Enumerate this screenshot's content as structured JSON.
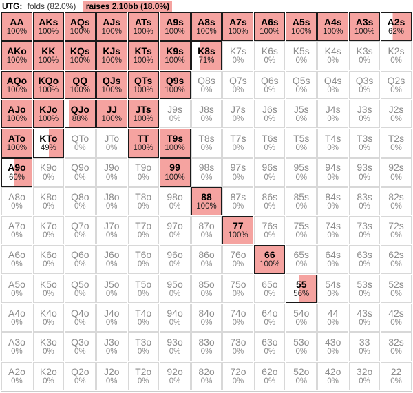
{
  "header": {
    "position": "UTG:",
    "fold_label": "folds (82.0%)",
    "raise_label": "raises 2.10bb (18.0%)"
  },
  "colors": {
    "raise_fill": "#F5A3A0",
    "active_border": "#1a1a1a",
    "inactive_border": "#d8d8d8",
    "inactive_text": "#8d8d8d"
  },
  "grid": {
    "rows": [
      [
        {
          "hand": "AA",
          "pct": 100
        },
        {
          "hand": "AKs",
          "pct": 100
        },
        {
          "hand": "AQs",
          "pct": 100
        },
        {
          "hand": "AJs",
          "pct": 100
        },
        {
          "hand": "ATs",
          "pct": 100
        },
        {
          "hand": "A9s",
          "pct": 100
        },
        {
          "hand": "A8s",
          "pct": 100
        },
        {
          "hand": "A7s",
          "pct": 100
        },
        {
          "hand": "A6s",
          "pct": 100
        },
        {
          "hand": "A5s",
          "pct": 100
        },
        {
          "hand": "A4s",
          "pct": 100
        },
        {
          "hand": "A3s",
          "pct": 100
        },
        {
          "hand": "A2s",
          "pct": 62
        }
      ],
      [
        {
          "hand": "AKo",
          "pct": 100
        },
        {
          "hand": "KK",
          "pct": 100
        },
        {
          "hand": "KQs",
          "pct": 100
        },
        {
          "hand": "KJs",
          "pct": 100
        },
        {
          "hand": "KTs",
          "pct": 100
        },
        {
          "hand": "K9s",
          "pct": 100
        },
        {
          "hand": "K8s",
          "pct": 71
        },
        {
          "hand": "K7s",
          "pct": 0
        },
        {
          "hand": "K6s",
          "pct": 0
        },
        {
          "hand": "K5s",
          "pct": 0
        },
        {
          "hand": "K4s",
          "pct": 0
        },
        {
          "hand": "K3s",
          "pct": 0
        },
        {
          "hand": "K2s",
          "pct": 0
        }
      ],
      [
        {
          "hand": "AQo",
          "pct": 100
        },
        {
          "hand": "KQo",
          "pct": 100
        },
        {
          "hand": "QQ",
          "pct": 100
        },
        {
          "hand": "QJs",
          "pct": 100
        },
        {
          "hand": "QTs",
          "pct": 100
        },
        {
          "hand": "Q9s",
          "pct": 100
        },
        {
          "hand": "Q8s",
          "pct": 0
        },
        {
          "hand": "Q7s",
          "pct": 0
        },
        {
          "hand": "Q6s",
          "pct": 0
        },
        {
          "hand": "Q5s",
          "pct": 0
        },
        {
          "hand": "Q4s",
          "pct": 0
        },
        {
          "hand": "Q3s",
          "pct": 0
        },
        {
          "hand": "Q2s",
          "pct": 0
        }
      ],
      [
        {
          "hand": "AJo",
          "pct": 100
        },
        {
          "hand": "KJo",
          "pct": 100
        },
        {
          "hand": "QJo",
          "pct": 88
        },
        {
          "hand": "JJ",
          "pct": 100
        },
        {
          "hand": "JTs",
          "pct": 100
        },
        {
          "hand": "J9s",
          "pct": 0
        },
        {
          "hand": "J8s",
          "pct": 0
        },
        {
          "hand": "J7s",
          "pct": 0
        },
        {
          "hand": "J6s",
          "pct": 0
        },
        {
          "hand": "J5s",
          "pct": 0
        },
        {
          "hand": "J4s",
          "pct": 0
        },
        {
          "hand": "J3s",
          "pct": 0
        },
        {
          "hand": "J2s",
          "pct": 0
        }
      ],
      [
        {
          "hand": "ATo",
          "pct": 100
        },
        {
          "hand": "KTo",
          "pct": 49
        },
        {
          "hand": "QTo",
          "pct": 0
        },
        {
          "hand": "JTo",
          "pct": 0
        },
        {
          "hand": "TT",
          "pct": 100
        },
        {
          "hand": "T9s",
          "pct": 100
        },
        {
          "hand": "T8s",
          "pct": 0
        },
        {
          "hand": "T7s",
          "pct": 0
        },
        {
          "hand": "T6s",
          "pct": 0
        },
        {
          "hand": "T5s",
          "pct": 0
        },
        {
          "hand": "T4s",
          "pct": 0
        },
        {
          "hand": "T3s",
          "pct": 0
        },
        {
          "hand": "T2s",
          "pct": 0
        }
      ],
      [
        {
          "hand": "A9o",
          "pct": 60
        },
        {
          "hand": "K9o",
          "pct": 0
        },
        {
          "hand": "Q9o",
          "pct": 0
        },
        {
          "hand": "J9o",
          "pct": 0
        },
        {
          "hand": "T9o",
          "pct": 0
        },
        {
          "hand": "99",
          "pct": 100
        },
        {
          "hand": "98s",
          "pct": 0
        },
        {
          "hand": "97s",
          "pct": 0
        },
        {
          "hand": "96s",
          "pct": 0
        },
        {
          "hand": "95s",
          "pct": 0
        },
        {
          "hand": "94s",
          "pct": 0
        },
        {
          "hand": "93s",
          "pct": 0
        },
        {
          "hand": "92s",
          "pct": 0
        }
      ],
      [
        {
          "hand": "A8o",
          "pct": 0
        },
        {
          "hand": "K8o",
          "pct": 0
        },
        {
          "hand": "Q8o",
          "pct": 0
        },
        {
          "hand": "J8o",
          "pct": 0
        },
        {
          "hand": "T8o",
          "pct": 0
        },
        {
          "hand": "98o",
          "pct": 0
        },
        {
          "hand": "88",
          "pct": 100
        },
        {
          "hand": "87s",
          "pct": 0
        },
        {
          "hand": "86s",
          "pct": 0
        },
        {
          "hand": "85s",
          "pct": 0
        },
        {
          "hand": "84s",
          "pct": 0
        },
        {
          "hand": "83s",
          "pct": 0
        },
        {
          "hand": "82s",
          "pct": 0
        }
      ],
      [
        {
          "hand": "A7o",
          "pct": 0
        },
        {
          "hand": "K7o",
          "pct": 0
        },
        {
          "hand": "Q7o",
          "pct": 0
        },
        {
          "hand": "J7o",
          "pct": 0
        },
        {
          "hand": "T7o",
          "pct": 0
        },
        {
          "hand": "97o",
          "pct": 0
        },
        {
          "hand": "87o",
          "pct": 0
        },
        {
          "hand": "77",
          "pct": 100
        },
        {
          "hand": "76s",
          "pct": 0
        },
        {
          "hand": "75s",
          "pct": 0
        },
        {
          "hand": "74s",
          "pct": 0
        },
        {
          "hand": "73s",
          "pct": 0
        },
        {
          "hand": "72s",
          "pct": 0
        }
      ],
      [
        {
          "hand": "A6o",
          "pct": 0
        },
        {
          "hand": "K6o",
          "pct": 0
        },
        {
          "hand": "Q6o",
          "pct": 0
        },
        {
          "hand": "J6o",
          "pct": 0
        },
        {
          "hand": "T6o",
          "pct": 0
        },
        {
          "hand": "96o",
          "pct": 0
        },
        {
          "hand": "86o",
          "pct": 0
        },
        {
          "hand": "76o",
          "pct": 0
        },
        {
          "hand": "66",
          "pct": 100
        },
        {
          "hand": "65s",
          "pct": 0
        },
        {
          "hand": "64s",
          "pct": 0
        },
        {
          "hand": "63s",
          "pct": 0
        },
        {
          "hand": "62s",
          "pct": 0
        }
      ],
      [
        {
          "hand": "A5o",
          "pct": 0
        },
        {
          "hand": "K5o",
          "pct": 0
        },
        {
          "hand": "Q5o",
          "pct": 0
        },
        {
          "hand": "J5o",
          "pct": 0
        },
        {
          "hand": "T5o",
          "pct": 0
        },
        {
          "hand": "95o",
          "pct": 0
        },
        {
          "hand": "85o",
          "pct": 0
        },
        {
          "hand": "75o",
          "pct": 0
        },
        {
          "hand": "65o",
          "pct": 0
        },
        {
          "hand": "55",
          "pct": 56
        },
        {
          "hand": "54s",
          "pct": 0
        },
        {
          "hand": "53s",
          "pct": 0
        },
        {
          "hand": "52s",
          "pct": 0
        }
      ],
      [
        {
          "hand": "A4o",
          "pct": 0
        },
        {
          "hand": "K4o",
          "pct": 0
        },
        {
          "hand": "Q4o",
          "pct": 0
        },
        {
          "hand": "J4o",
          "pct": 0
        },
        {
          "hand": "T4o",
          "pct": 0
        },
        {
          "hand": "94o",
          "pct": 0
        },
        {
          "hand": "84o",
          "pct": 0
        },
        {
          "hand": "74o",
          "pct": 0
        },
        {
          "hand": "64o",
          "pct": 0
        },
        {
          "hand": "54o",
          "pct": 0
        },
        {
          "hand": "44",
          "pct": 0
        },
        {
          "hand": "43s",
          "pct": 0
        },
        {
          "hand": "42s",
          "pct": 0
        }
      ],
      [
        {
          "hand": "A3o",
          "pct": 0
        },
        {
          "hand": "K3o",
          "pct": 0
        },
        {
          "hand": "Q3o",
          "pct": 0
        },
        {
          "hand": "J3o",
          "pct": 0
        },
        {
          "hand": "T3o",
          "pct": 0
        },
        {
          "hand": "93o",
          "pct": 0
        },
        {
          "hand": "83o",
          "pct": 0
        },
        {
          "hand": "73o",
          "pct": 0
        },
        {
          "hand": "63o",
          "pct": 0
        },
        {
          "hand": "53o",
          "pct": 0
        },
        {
          "hand": "43o",
          "pct": 0
        },
        {
          "hand": "33",
          "pct": 0
        },
        {
          "hand": "32s",
          "pct": 0
        }
      ],
      [
        {
          "hand": "A2o",
          "pct": 0
        },
        {
          "hand": "K2o",
          "pct": 0
        },
        {
          "hand": "Q2o",
          "pct": 0
        },
        {
          "hand": "J2o",
          "pct": 0
        },
        {
          "hand": "T2o",
          "pct": 0
        },
        {
          "hand": "92o",
          "pct": 0
        },
        {
          "hand": "82o",
          "pct": 0
        },
        {
          "hand": "72o",
          "pct": 0
        },
        {
          "hand": "62o",
          "pct": 0
        },
        {
          "hand": "52o",
          "pct": 0
        },
        {
          "hand": "42o",
          "pct": 0
        },
        {
          "hand": "32o",
          "pct": 0
        },
        {
          "hand": "22",
          "pct": 0
        }
      ]
    ]
  }
}
